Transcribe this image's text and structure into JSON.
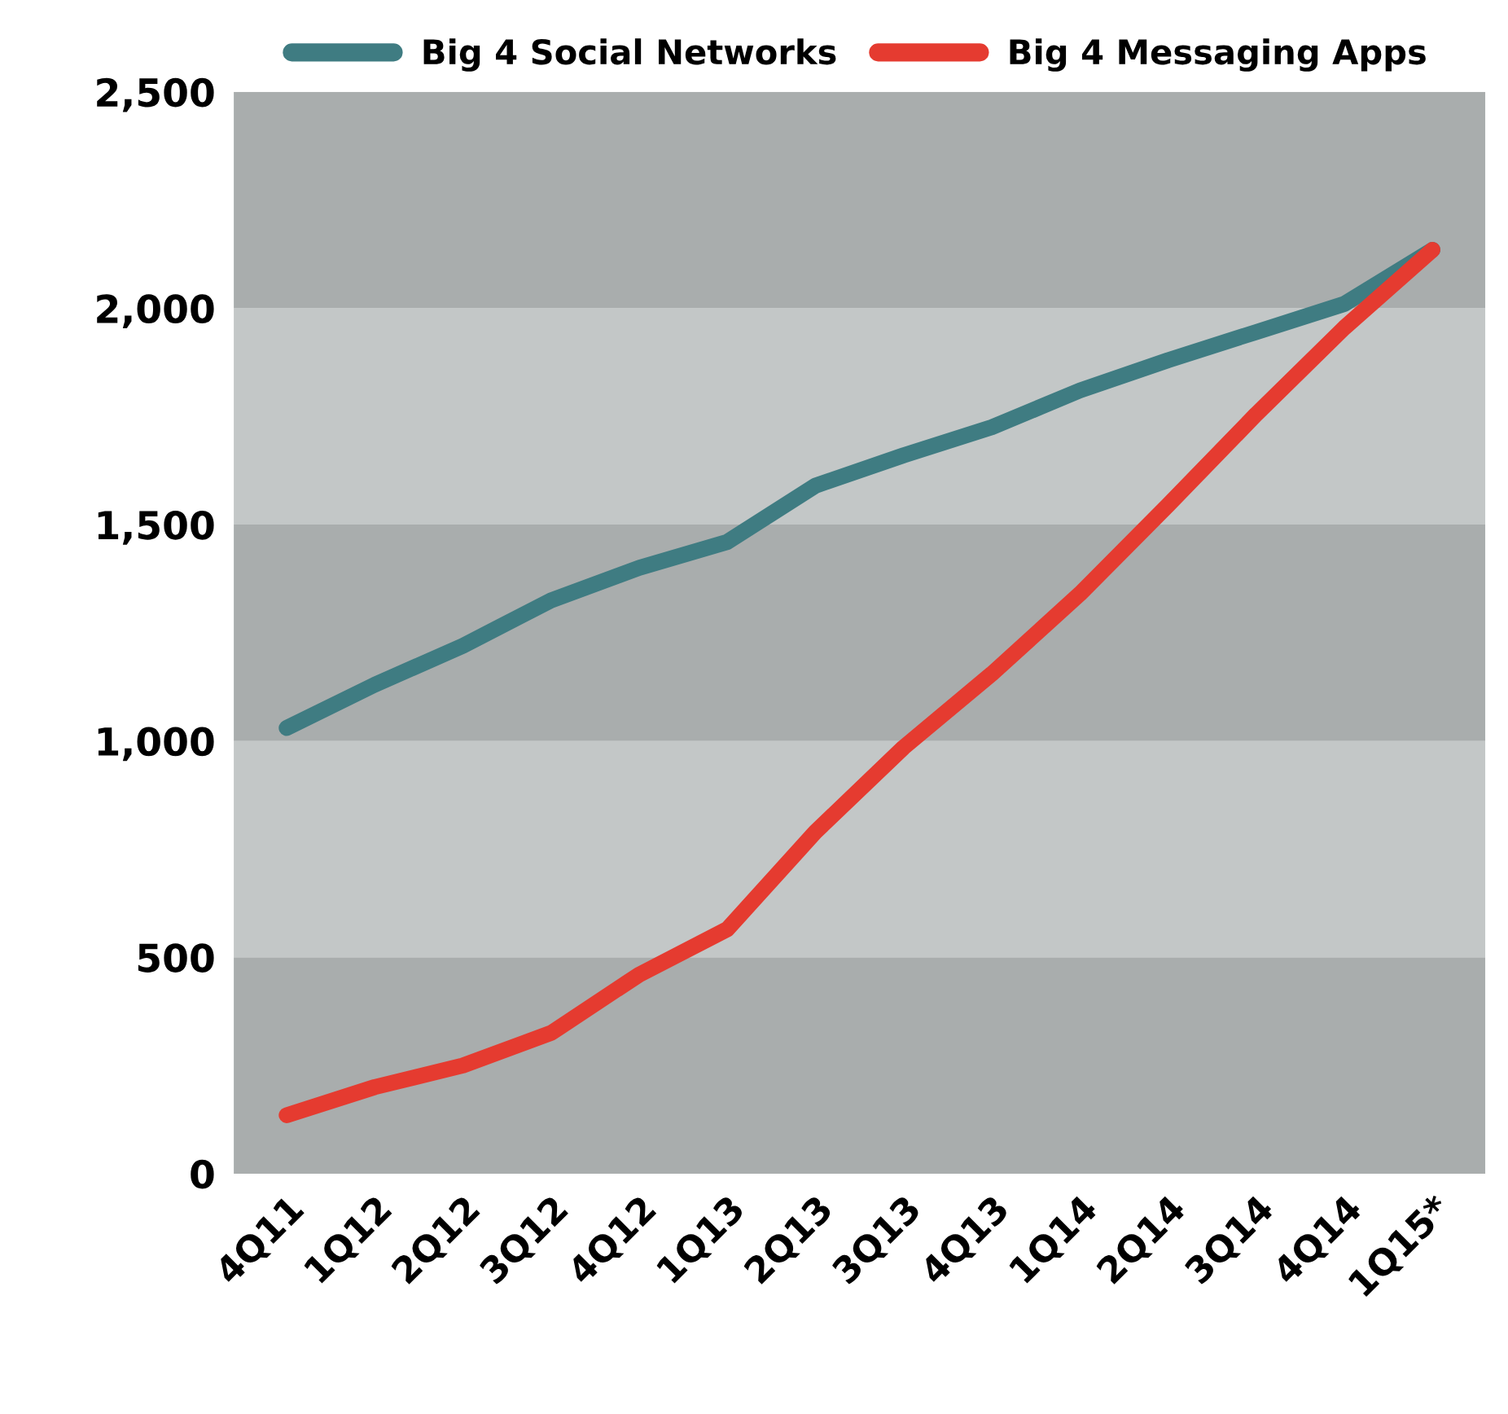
{
  "chart_data": {
    "type": "line",
    "categories": [
      "4Q11",
      "1Q12",
      "2Q12",
      "3Q12",
      "4Q12",
      "1Q13",
      "2Q13",
      "3Q13",
      "4Q13",
      "1Q14",
      "2Q14",
      "3Q14",
      "4Q14",
      "1Q15*"
    ],
    "series": [
      {
        "name": "Big 4 Social Networks",
        "color": "#3f7c82",
        "values": [
          1030,
          1130,
          1220,
          1325,
          1400,
          1460,
          1590,
          1660,
          1725,
          1810,
          1880,
          1945,
          2010,
          2135
        ]
      },
      {
        "name": "Big 4 Messaging Apps",
        "color": "#e53b30",
        "values": [
          135,
          200,
          250,
          325,
          460,
          565,
          790,
          985,
          1155,
          1340,
          1545,
          1755,
          1955,
          2135
        ]
      }
    ],
    "ylim": [
      0,
      2500
    ],
    "yticks": [
      {
        "value": 0,
        "label": "0"
      },
      {
        "value": 500,
        "label": "500"
      },
      {
        "value": 1000,
        "label": "1,000"
      },
      {
        "value": 1500,
        "label": "1,500"
      },
      {
        "value": 2000,
        "label": "2,000"
      },
      {
        "value": 2500,
        "label": "2,500"
      }
    ],
    "bands": [
      {
        "axis": "y",
        "from": 0,
        "to": 500,
        "color": "#a9adad"
      },
      {
        "axis": "y",
        "from": 500,
        "to": 1000,
        "color": "#c3c7c7"
      },
      {
        "axis": "y",
        "from": 1000,
        "to": 1500,
        "color": "#a9adad"
      },
      {
        "axis": "y",
        "from": 1500,
        "to": 2000,
        "color": "#c3c7c7"
      },
      {
        "axis": "y",
        "from": 2000,
        "to": 2500,
        "color": "#a9adad"
      }
    ],
    "grid": false,
    "legend": "top",
    "marker": "none",
    "line_style": "solid"
  }
}
